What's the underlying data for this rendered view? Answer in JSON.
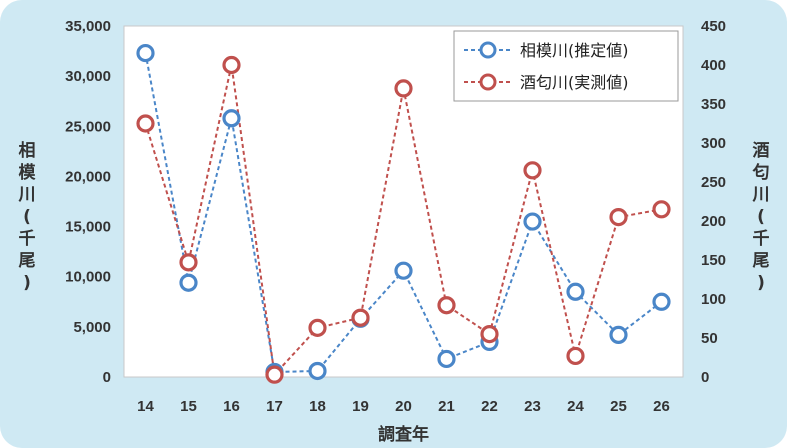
{
  "chart_data": {
    "type": "line",
    "xlabel": "調査年",
    "categories": [
      "14",
      "15",
      "16",
      "17",
      "18",
      "19",
      "20",
      "21",
      "22",
      "23",
      "24",
      "25",
      "26"
    ],
    "left_axis": {
      "label": "相模川(千尾)",
      "ylim": [
        0,
        35000
      ],
      "ticks": [
        "0",
        "5,000",
        "10,000",
        "15,000",
        "20,000",
        "25,000",
        "30,000",
        "35,000"
      ]
    },
    "right_axis": {
      "label": "酒匂川(千尾)",
      "ylim": [
        0,
        450
      ],
      "ticks": [
        "0",
        "50",
        "100",
        "150",
        "200",
        "250",
        "300",
        "350",
        "400",
        "450"
      ]
    },
    "series": [
      {
        "name": "相模川(推定値)",
        "axis": "left",
        "color": "#4a86c8",
        "values": [
          32300,
          9400,
          25800,
          500,
          600,
          5800,
          10600,
          1800,
          3500,
          15500,
          8500,
          4200,
          7500
        ]
      },
      {
        "name": "酒匂川(実測値)",
        "axis": "right",
        "color": "#c0504d",
        "values": [
          325,
          147,
          400,
          3,
          63,
          76,
          370,
          92,
          55,
          265,
          27,
          205,
          215
        ]
      }
    ],
    "legend_position": "top-right",
    "grid": false
  }
}
